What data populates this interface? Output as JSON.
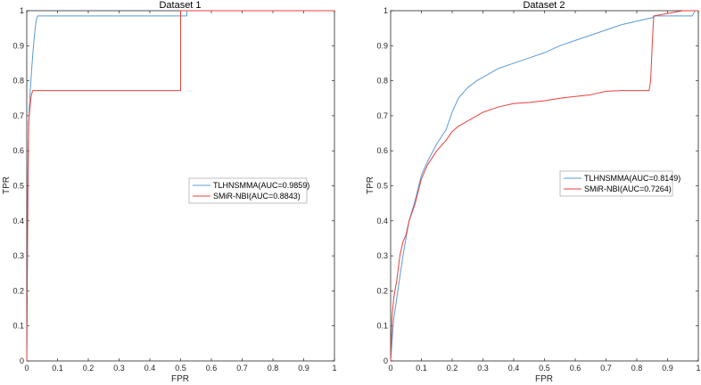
{
  "chart_data": [
    {
      "type": "line",
      "title": "Dataset 1",
      "xlabel": "FPR",
      "ylabel": "TPR",
      "xlim": [
        0,
        1
      ],
      "ylim": [
        0,
        1
      ],
      "xticks": [
        "0",
        "0.1",
        "0.2",
        "0.3",
        "0.4",
        "0.5",
        "0.6",
        "0.7",
        "0.8",
        "0.9",
        "1"
      ],
      "yticks": [
        "0",
        "0.1",
        "0.2",
        "0.3",
        "0.4",
        "0.5",
        "0.6",
        "0.7",
        "0.8",
        "0.9",
        "1"
      ],
      "grid": false,
      "legend_position": "right",
      "series": [
        {
          "name": "TLHNSMMA(AUC=0.9859)",
          "color": "#5b9bd5",
          "x": [
            0,
            0.002,
            0.004,
            0.006,
            0.008,
            0.01,
            0.012,
            0.015,
            0.02,
            0.025,
            0.03,
            0.035,
            0.04,
            0.05,
            0.1,
            0.2,
            0.3,
            0.4,
            0.5,
            0.51,
            0.52,
            0.52,
            0.6,
            0.7,
            0.8,
            0.9,
            1.0
          ],
          "y": [
            0,
            0.25,
            0.5,
            0.65,
            0.72,
            0.75,
            0.78,
            0.82,
            0.88,
            0.93,
            0.97,
            0.985,
            0.985,
            0.985,
            0.985,
            0.985,
            0.985,
            0.985,
            0.985,
            0.985,
            0.985,
            1.0,
            1.0,
            1.0,
            1.0,
            1.0,
            1.0
          ]
        },
        {
          "name": "SMiR-NBI(AUC=0.8843)",
          "color": "#e8413c",
          "x": [
            0,
            0.002,
            0.004,
            0.006,
            0.008,
            0.01,
            0.015,
            0.02,
            0.03,
            0.05,
            0.1,
            0.2,
            0.3,
            0.4,
            0.5,
            0.5,
            0.6,
            0.7,
            0.8,
            0.9,
            1.0
          ],
          "y": [
            0,
            0.3,
            0.55,
            0.68,
            0.7,
            0.72,
            0.76,
            0.772,
            0.772,
            0.772,
            0.772,
            0.772,
            0.772,
            0.772,
            0.772,
            1.0,
            1.0,
            1.0,
            1.0,
            1.0,
            1.0
          ]
        }
      ]
    },
    {
      "type": "line",
      "title": "Dataset 2",
      "xlabel": "FPR",
      "ylabel": "TPR",
      "xlim": [
        0,
        1
      ],
      "ylim": [
        0,
        1
      ],
      "xticks": [
        "0",
        "0.1",
        "0.2",
        "0.3",
        "0.4",
        "0.5",
        "0.6",
        "0.7",
        "0.8",
        "0.9",
        "1"
      ],
      "yticks": [
        "0",
        "0.1",
        "0.2",
        "0.3",
        "0.4",
        "0.5",
        "0.6",
        "0.7",
        "0.8",
        "0.9",
        "1"
      ],
      "grid": false,
      "legend_position": "right",
      "series": [
        {
          "name": "TLHNSMMA(AUC=0.8149)",
          "color": "#5b9bd5",
          "x": [
            0,
            0.005,
            0.01,
            0.02,
            0.03,
            0.04,
            0.05,
            0.06,
            0.08,
            0.1,
            0.12,
            0.15,
            0.18,
            0.2,
            0.22,
            0.25,
            0.28,
            0.3,
            0.35,
            0.4,
            0.45,
            0.5,
            0.55,
            0.6,
            0.65,
            0.7,
            0.75,
            0.8,
            0.85,
            0.86,
            0.9,
            0.95,
            0.98,
            0.99,
            1.0
          ],
          "y": [
            0,
            0.06,
            0.12,
            0.18,
            0.24,
            0.3,
            0.35,
            0.4,
            0.46,
            0.53,
            0.57,
            0.62,
            0.66,
            0.71,
            0.75,
            0.78,
            0.8,
            0.81,
            0.835,
            0.85,
            0.865,
            0.88,
            0.9,
            0.915,
            0.93,
            0.945,
            0.96,
            0.97,
            0.98,
            0.985,
            0.985,
            0.985,
            0.985,
            1.0,
            1.0
          ]
        },
        {
          "name": "SMiR-NBI(AUC=0.7264)",
          "color": "#e8413c",
          "x": [
            0,
            0.005,
            0.01,
            0.02,
            0.03,
            0.04,
            0.05,
            0.06,
            0.08,
            0.1,
            0.12,
            0.15,
            0.18,
            0.2,
            0.22,
            0.25,
            0.28,
            0.3,
            0.35,
            0.4,
            0.45,
            0.5,
            0.55,
            0.6,
            0.65,
            0.7,
            0.75,
            0.8,
            0.84,
            0.845,
            0.85,
            0.855,
            0.9,
            0.95,
            1.0
          ],
          "y": [
            0,
            0.13,
            0.18,
            0.23,
            0.3,
            0.34,
            0.36,
            0.4,
            0.45,
            0.52,
            0.56,
            0.6,
            0.63,
            0.655,
            0.67,
            0.685,
            0.7,
            0.71,
            0.725,
            0.735,
            0.738,
            0.743,
            0.75,
            0.755,
            0.76,
            0.77,
            0.772,
            0.772,
            0.772,
            0.8,
            0.9,
            0.985,
            0.992,
            1.0,
            1.0
          ]
        }
      ]
    }
  ]
}
